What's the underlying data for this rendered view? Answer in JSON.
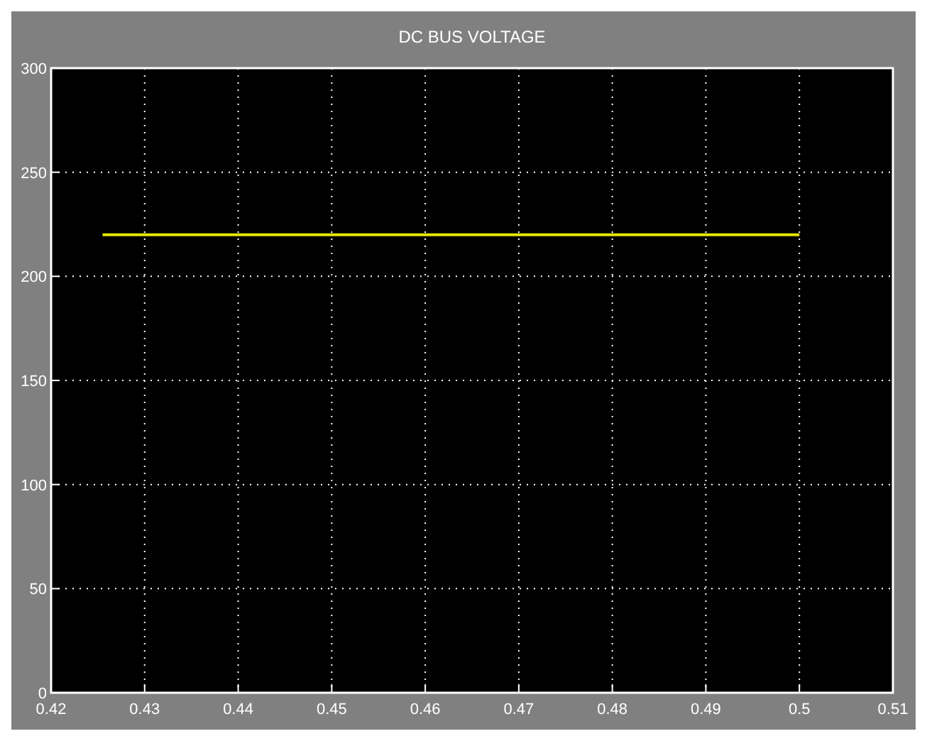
{
  "chart_data": {
    "type": "line",
    "title": "DC BUS VOLTAGE",
    "series": [
      {
        "color": "#e6e600",
        "x": [
          0.4255,
          0.5
        ],
        "values": [
          220,
          220
        ]
      }
    ],
    "xlim": [
      0.42,
      0.51
    ],
    "xticks": [
      0.42,
      0.43,
      0.44,
      0.45,
      0.46,
      0.47,
      0.48,
      0.49,
      0.5,
      0.51
    ],
    "ylim": [
      0,
      300
    ],
    "yticks": [
      0,
      50,
      100,
      150,
      200,
      250,
      300
    ],
    "grid": true,
    "line_style": "solid",
    "marker": "none"
  }
}
